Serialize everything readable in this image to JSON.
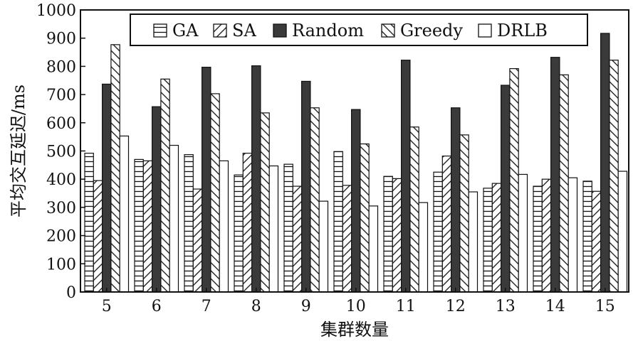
{
  "chart_data": {
    "type": "bar",
    "xlabel": "集群数量",
    "ylabel": "平均交互延迟/ms",
    "ylim": [
      0,
      1000
    ],
    "yticks": [
      0,
      100,
      200,
      300,
      400,
      500,
      600,
      700,
      800,
      900,
      1000
    ],
    "categories": [
      "5",
      "6",
      "7",
      "8",
      "9",
      "10",
      "11",
      "12",
      "13",
      "14",
      "15"
    ],
    "legend_position": "top-right",
    "grid": false,
    "series": [
      {
        "name": "GA",
        "pattern": "horizontal-hatch",
        "values": [
          492,
          470,
          487,
          415,
          453,
          498,
          410,
          425,
          368,
          375,
          393
        ]
      },
      {
        "name": "SA",
        "pattern": "forward-diagonal-hatch",
        "values": [
          395,
          465,
          365,
          492,
          375,
          378,
          402,
          482,
          385,
          400,
          357
        ]
      },
      {
        "name": "Random",
        "pattern": "solid-dark",
        "values": [
          737,
          657,
          797,
          802,
          747,
          647,
          822,
          653,
          733,
          832,
          917
        ]
      },
      {
        "name": "Greedy",
        "pattern": "back-diagonal-hatch",
        "values": [
          877,
          755,
          703,
          635,
          653,
          525,
          585,
          557,
          792,
          770,
          822
        ]
      },
      {
        "name": "DRLB",
        "pattern": "white",
        "values": [
          553,
          520,
          465,
          447,
          322,
          305,
          317,
          355,
          417,
          405,
          428
        ]
      }
    ]
  }
}
